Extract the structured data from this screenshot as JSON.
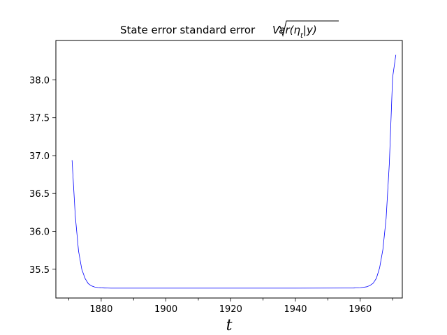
{
  "chart_data": {
    "type": "line",
    "title": "State error standard error",
    "title_math": "Var(η",
    "title_math_sub": "t",
    "title_math_tail": "|y)",
    "xlabel": "t",
    "ylabel": "",
    "xlim": [
      1866,
      1973
    ],
    "ylim": [
      35.12,
      38.52
    ],
    "xticks": [
      1880,
      1900,
      1920,
      1940,
      1960
    ],
    "xticks_minor": [
      1870,
      1890,
      1910,
      1930,
      1950,
      1970
    ],
    "xtick_labels": [
      "1880",
      "1900",
      "1920",
      "1940",
      "1960"
    ],
    "yticks": [
      35.5,
      36.0,
      36.5,
      37.0,
      37.5,
      38.0
    ],
    "ytick_labels": [
      "35.5",
      "36.0",
      "36.5",
      "37.0",
      "37.5",
      "38.0"
    ],
    "grid": false,
    "series": [
      {
        "color": "#0000ff",
        "x": [
          1871,
          1872,
          1873,
          1874,
          1875,
          1876,
          1877,
          1878,
          1879,
          1880,
          1881,
          1882,
          1883,
          1884,
          1886,
          1890,
          1900,
          1920,
          1940,
          1955,
          1958,
          1960,
          1962,
          1963,
          1964,
          1965,
          1966,
          1967,
          1968,
          1969,
          1970,
          1971
        ],
        "y": [
          36.94,
          36.2,
          35.74,
          35.5,
          35.38,
          35.31,
          35.28,
          35.265,
          35.258,
          35.254,
          35.252,
          35.251,
          35.25,
          35.25,
          35.25,
          35.25,
          35.25,
          35.25,
          35.25,
          35.251,
          35.252,
          35.256,
          35.268,
          35.285,
          35.315,
          35.38,
          35.52,
          35.76,
          36.17,
          36.9,
          38.03,
          38.33
        ]
      }
    ]
  }
}
